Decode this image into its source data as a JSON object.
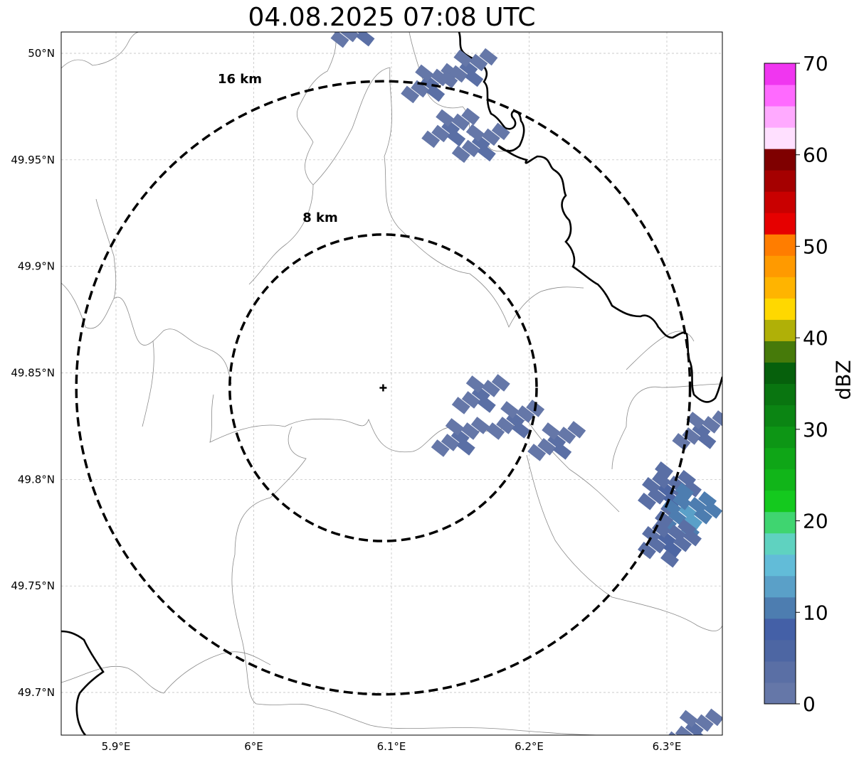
{
  "title": "04.08.2025 07:08 UTC",
  "map": {
    "lon_range": [
      5.86,
      6.34
    ],
    "lat_range": [
      49.68,
      50.01
    ],
    "lon_ticks": [
      {
        "value": 5.9,
        "label": "5.9°E"
      },
      {
        "value": 6.0,
        "label": "6°E"
      },
      {
        "value": 6.1,
        "label": "6.1°E"
      },
      {
        "value": 6.2,
        "label": "6.2°E"
      },
      {
        "value": 6.3,
        "label": "6.3°E"
      }
    ],
    "lat_ticks": [
      {
        "value": 50.0,
        "label": "50°N"
      },
      {
        "value": 49.95,
        "label": "49.95°N"
      },
      {
        "value": 49.9,
        "label": "49.9°N"
      },
      {
        "value": 49.85,
        "label": "49.85°N"
      },
      {
        "value": 49.8,
        "label": "49.8°N"
      },
      {
        "value": 49.75,
        "label": "49.75°N"
      },
      {
        "value": 49.7,
        "label": "49.7°N"
      }
    ],
    "gridlines": true,
    "radar_center": {
      "lon": 6.094,
      "lat": 49.843
    },
    "range_rings": [
      {
        "label": "8 km",
        "radius_km": 8
      },
      {
        "label": "16 km",
        "radius_km": 16
      }
    ]
  },
  "colorbar": {
    "title": "dBZ",
    "min": 0,
    "max": 70,
    "tick_labels": [
      "0",
      "10",
      "20",
      "30",
      "40",
      "50",
      "60",
      "70"
    ],
    "colors": [
      "#6577a8",
      "#5a6fa5",
      "#4d66a3",
      "#4460a7",
      "#4d7db0",
      "#5aa0c8",
      "#62bcd8",
      "#5fd2c0",
      "#3fd570",
      "#14c91e",
      "#11b519",
      "#0fa617",
      "#0d9615",
      "#0b8513",
      "#097510",
      "#06600c",
      "#467a0a",
      "#b0b007",
      "#ffd800",
      "#ffb400",
      "#ff9a00",
      "#ff7d00",
      "#e60000",
      "#c90000",
      "#a50000",
      "#7f0000",
      "#ffe0ff",
      "#ffaaff",
      "#ff6aff",
      "#f036f0"
    ]
  },
  "echoes": [
    {
      "name": "echo-north-1",
      "lon": 6.077,
      "lat": 50.012,
      "dbz": 3
    },
    {
      "name": "echo-north-2",
      "lon": 6.128,
      "lat": 49.986,
      "dbz": 3
    },
    {
      "name": "echo-north-3",
      "lon": 6.143,
      "lat": 49.965,
      "dbz": 3
    },
    {
      "name": "echo-north-4",
      "lon": 6.156,
      "lat": 49.993,
      "dbz": 4
    },
    {
      "name": "echo-north-5",
      "lon": 6.165,
      "lat": 49.958,
      "dbz": 3
    },
    {
      "name": "echo-center-1",
      "lon": 6.165,
      "lat": 49.84,
      "dbz": 4
    },
    {
      "name": "echo-center-2",
      "lon": 6.19,
      "lat": 49.828,
      "dbz": 3
    },
    {
      "name": "echo-center-3",
      "lon": 6.15,
      "lat": 49.82,
      "dbz": 3
    },
    {
      "name": "echo-center-4",
      "lon": 6.22,
      "lat": 49.818,
      "dbz": 3
    },
    {
      "name": "echo-se-1",
      "lon": 6.3,
      "lat": 49.795,
      "dbz": 6
    },
    {
      "name": "echo-se-2",
      "lon": 6.315,
      "lat": 49.785,
      "dbz": 13
    },
    {
      "name": "echo-se-3",
      "lon": 6.325,
      "lat": 49.823,
      "dbz": 4
    },
    {
      "name": "echo-se-4",
      "lon": 6.3,
      "lat": 49.772,
      "dbz": 5
    },
    {
      "name": "echo-south-1",
      "lon": 6.32,
      "lat": 49.683,
      "dbz": 3
    }
  ]
}
